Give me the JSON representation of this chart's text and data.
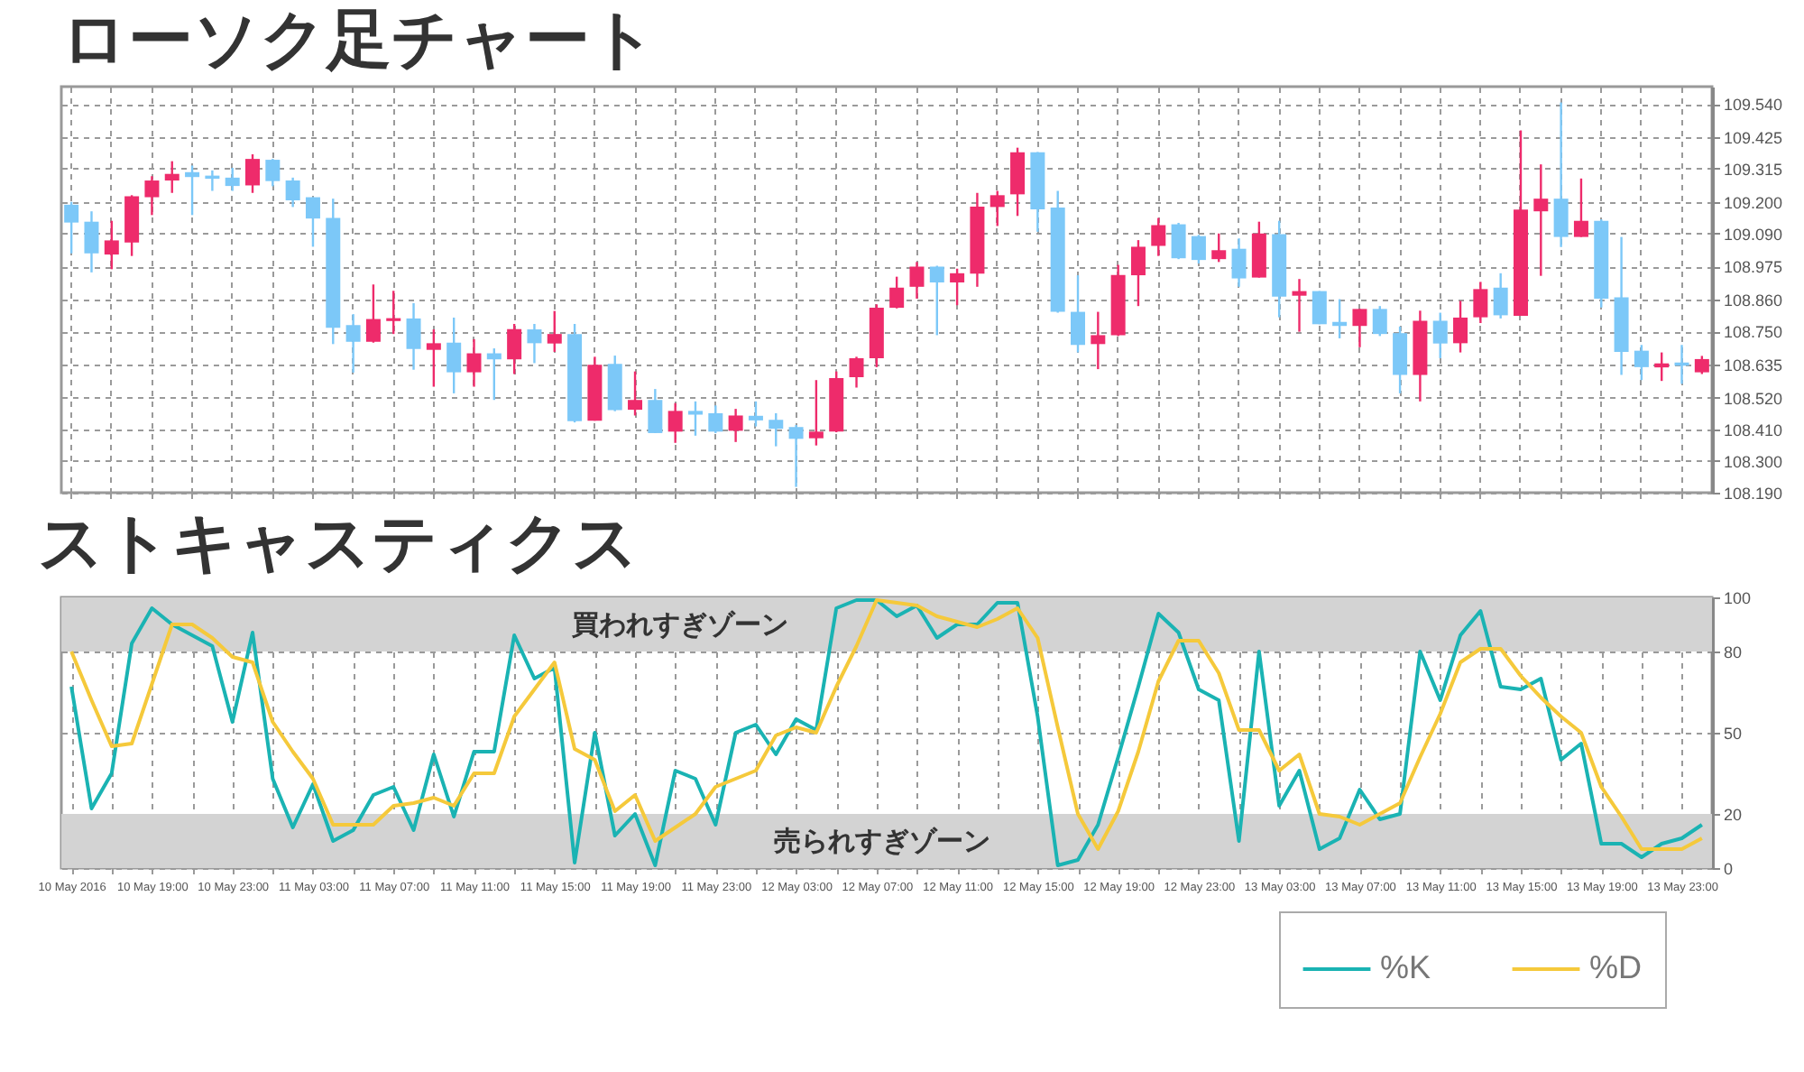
{
  "chart_data": [
    {
      "type": "candlestick",
      "title": "ローソク足チャート",
      "categories": [
        null,
        null,
        null,
        null,
        null,
        null,
        null,
        null,
        null,
        null,
        null,
        null,
        null,
        null,
        null,
        null,
        null,
        null,
        null,
        null,
        null,
        null,
        null,
        null,
        null,
        null,
        null,
        null,
        null,
        null,
        null,
        null,
        null,
        null,
        null,
        null,
        null,
        null,
        null,
        null,
        null,
        null,
        null,
        null,
        null,
        null,
        null,
        null,
        null,
        null,
        null,
        null,
        null,
        null,
        null,
        null,
        null,
        null,
        null,
        null,
        null,
        null,
        null,
        null,
        null,
        null,
        null,
        null,
        null,
        null,
        null,
        null,
        null,
        null,
        null,
        null,
        null,
        null,
        null,
        null,
        null,
        null
      ],
      "ohlc": [
        [
          109.19,
          109.2,
          109.021,
          109.128
        ],
        [
          109.131,
          109.167,
          108.955,
          109.021
        ],
        [
          109.017,
          109.134,
          108.966,
          109.066
        ],
        [
          109.059,
          109.223,
          109.012,
          109.219
        ],
        [
          109.216,
          109.289,
          109.154,
          109.274
        ],
        [
          109.274,
          109.341,
          109.231,
          109.297
        ],
        [
          109.303,
          109.326,
          109.154,
          109.286
        ],
        [
          109.291,
          109.309,
          109.238,
          109.28
        ],
        [
          109.284,
          109.318,
          109.238,
          109.255
        ],
        [
          109.257,
          109.365,
          109.231,
          109.349
        ],
        [
          109.346,
          109.349,
          109.254,
          109.272
        ],
        [
          109.274,
          109.284,
          109.182,
          109.205
        ],
        [
          109.216,
          109.216,
          109.044,
          109.142
        ],
        [
          109.144,
          109.211,
          108.706,
          108.763
        ],
        [
          108.772,
          108.81,
          108.607,
          108.714
        ],
        [
          108.714,
          108.913,
          108.711,
          108.793
        ],
        [
          108.786,
          108.891,
          108.741,
          108.796
        ],
        [
          108.795,
          108.848,
          108.617,
          108.689
        ],
        [
          108.686,
          108.757,
          108.558,
          108.709
        ],
        [
          108.711,
          108.798,
          108.535,
          108.608
        ],
        [
          108.608,
          108.723,
          108.558,
          108.674
        ],
        [
          108.674,
          108.691,
          108.512,
          108.653
        ],
        [
          108.653,
          108.776,
          108.602,
          108.758
        ],
        [
          108.757,
          108.776,
          108.64,
          108.709
        ],
        [
          108.708,
          108.821,
          108.679,
          108.741
        ],
        [
          108.741,
          108.776,
          108.434,
          108.438
        ],
        [
          108.44,
          108.662,
          108.44,
          108.634
        ],
        [
          108.637,
          108.666,
          108.473,
          108.477
        ],
        [
          108.478,
          108.611,
          108.458,
          108.512
        ],
        [
          108.512,
          108.55,
          108.397,
          108.397
        ],
        [
          108.402,
          108.501,
          108.363,
          108.474
        ],
        [
          108.474,
          108.507,
          108.388,
          108.461
        ],
        [
          108.466,
          108.493,
          108.397,
          108.402
        ],
        [
          108.405,
          108.481,
          108.366,
          108.458
        ],
        [
          108.457,
          108.507,
          108.42,
          108.441
        ],
        [
          108.443,
          108.466,
          108.351,
          108.412
        ],
        [
          108.418,
          108.425,
          108.21,
          108.377
        ],
        [
          108.379,
          108.581,
          108.354,
          108.402
        ],
        [
          108.402,
          108.611,
          108.4,
          108.588
        ],
        [
          108.591,
          108.662,
          108.555,
          108.657
        ],
        [
          108.657,
          108.844,
          108.626,
          108.832
        ],
        [
          108.832,
          108.94,
          108.83,
          108.902
        ],
        [
          108.905,
          108.991,
          108.864,
          108.975
        ],
        [
          108.975,
          108.978,
          108.737,
          108.92
        ],
        [
          108.92,
          108.968,
          108.841,
          108.952
        ],
        [
          108.951,
          109.231,
          108.905,
          109.183
        ],
        [
          109.182,
          109.238,
          109.116,
          109.223
        ],
        [
          109.226,
          109.388,
          109.151,
          109.372
        ],
        [
          109.372,
          109.373,
          109.096,
          109.174
        ],
        [
          109.18,
          109.238,
          108.815,
          108.818
        ],
        [
          108.818,
          108.945,
          108.677,
          108.703
        ],
        [
          108.706,
          108.818,
          108.619,
          108.737
        ],
        [
          108.737,
          108.981,
          108.734,
          108.946
        ],
        [
          108.945,
          109.067,
          108.838,
          109.044
        ],
        [
          109.047,
          109.144,
          109.012,
          109.119
        ],
        [
          109.122,
          109.127,
          109.001,
          109.004
        ],
        [
          109.081,
          109.085,
          108.986,
          108.998
        ],
        [
          109.001,
          109.09,
          108.991,
          109.032
        ],
        [
          109.037,
          109.073,
          108.905,
          108.934
        ],
        [
          108.937,
          109.131,
          108.937,
          109.09
        ],
        [
          109.088,
          109.134,
          108.799,
          108.871
        ],
        [
          108.874,
          108.932,
          108.749,
          108.89
        ],
        [
          108.89,
          108.89,
          108.775,
          108.775
        ],
        [
          108.783,
          108.862,
          108.726,
          108.769
        ],
        [
          108.769,
          108.828,
          108.695,
          108.828
        ],
        [
          108.828,
          108.838,
          108.734,
          108.741
        ],
        [
          108.744,
          108.767,
          108.535,
          108.599
        ],
        [
          108.599,
          108.822,
          108.507,
          108.787
        ],
        [
          108.787,
          108.815,
          108.657,
          108.708
        ],
        [
          108.709,
          108.856,
          108.677,
          108.798
        ],
        [
          108.799,
          108.922,
          108.779,
          108.897
        ],
        [
          108.902,
          108.952,
          108.795,
          108.806
        ],
        [
          108.804,
          109.448,
          108.804,
          109.173
        ],
        [
          109.167,
          109.33,
          108.943,
          109.211
        ],
        [
          109.211,
          109.545,
          109.043,
          109.078
        ],
        [
          109.078,
          109.281,
          109.078,
          109.134
        ],
        [
          109.134,
          109.139,
          108.833,
          108.864
        ],
        [
          108.868,
          109.078,
          108.599,
          108.679
        ],
        [
          108.683,
          108.703,
          108.581,
          108.626
        ],
        [
          108.625,
          108.677,
          108.578,
          108.639
        ],
        [
          108.642,
          108.703,
          108.568,
          108.631
        ],
        [
          108.608,
          108.665,
          108.602,
          108.654
        ]
      ],
      "colors": [
        "#7cc8f8",
        "#7cc8f8",
        "#ee2b6b",
        "#ee2b6b",
        "#ee2b6b",
        "#ee2b6b",
        "#7cc8f8",
        "#7cc8f8",
        "#7cc8f8",
        "#ee2b6b",
        "#7cc8f8",
        "#7cc8f8",
        "#7cc8f8",
        "#7cc8f8",
        "#7cc8f8",
        "#ee2b6b",
        "#ee2b6b",
        "#7cc8f8",
        "#ee2b6b",
        "#7cc8f8",
        "#ee2b6b",
        "#7cc8f8",
        "#ee2b6b",
        "#7cc8f8",
        "#ee2b6b",
        "#7cc8f8",
        "#ee2b6b",
        "#7cc8f8",
        "#ee2b6b",
        "#7cc8f8",
        "#ee2b6b",
        "#7cc8f8",
        "#7cc8f8",
        "#ee2b6b",
        "#7cc8f8",
        "#7cc8f8",
        "#7cc8f8",
        "#ee2b6b",
        "#ee2b6b",
        "#ee2b6b",
        "#ee2b6b",
        "#ee2b6b",
        "#ee2b6b",
        "#7cc8f8",
        "#ee2b6b",
        "#ee2b6b",
        "#ee2b6b",
        "#ee2b6b",
        "#7cc8f8",
        "#7cc8f8",
        "#7cc8f8",
        "#ee2b6b",
        "#ee2b6b",
        "#ee2b6b",
        "#ee2b6b",
        "#7cc8f8",
        "#7cc8f8",
        "#ee2b6b",
        "#7cc8f8",
        "#ee2b6b",
        "#7cc8f8",
        "#ee2b6b",
        "#7cc8f8",
        "#7cc8f8",
        "#ee2b6b",
        "#7cc8f8",
        "#7cc8f8",
        "#ee2b6b",
        "#7cc8f8",
        "#ee2b6b",
        "#ee2b6b",
        "#7cc8f8",
        "#ee2b6b",
        "#ee2b6b",
        "#7cc8f8",
        "#ee2b6b",
        "#7cc8f8",
        "#7cc8f8",
        "#7cc8f8",
        "#ee2b6b",
        "#7cc8f8",
        "#ee2b6b"
      ],
      "ylim": [
        108.19,
        109.6
      ],
      "yticks": [
        {
          "value": 108.19,
          "label": "108.190"
        },
        {
          "value": 108.3,
          "label": "108.300"
        },
        {
          "value": 108.41,
          "label": "108.410"
        },
        {
          "value": 108.52,
          "label": "108.520"
        },
        108.635,
        {
          "value": 108.75,
          "label": "108.750"
        },
        {
          "value": 108.86,
          "label": "108.860"
        },
        108.975,
        {
          "value": 109.09,
          "label": "109.090"
        },
        {
          "value": 109.2,
          "label": "109.200"
        },
        109.315,
        109.425,
        {
          "value": 109.54,
          "label": "109.540"
        }
      ],
      "grid": true,
      "tick_labels": "y"
    },
    {
      "type": "line",
      "title": "ストキャスティクス",
      "x": [
        "2016-05-10T15:00",
        "2016-05-10T16:00",
        "2016-05-10T17:00",
        "2016-05-10T18:00",
        "2016-05-10T19:00",
        "2016-05-10T20:00",
        "2016-05-10T21:00",
        "2016-05-10T22:00",
        "2016-05-10T23:00",
        "2016-05-11T00:00",
        "2016-05-11T01:00",
        "2016-05-11T02:00",
        "2016-05-11T03:00",
        "2016-05-11T04:00",
        "2016-05-11T05:00",
        "2016-05-11T06:00",
        "2016-05-11T07:00",
        "2016-05-11T08:00",
        "2016-05-11T09:00",
        "2016-05-11T10:00",
        "2016-05-11T11:00",
        "2016-05-11T12:00",
        "2016-05-11T13:00",
        "2016-05-11T14:00",
        "2016-05-11T15:00",
        "2016-05-11T16:00",
        "2016-05-11T17:00",
        "2016-05-11T18:00",
        "2016-05-11T19:00",
        "2016-05-11T20:00",
        "2016-05-11T21:00",
        "2016-05-11T22:00",
        "2016-05-11T23:00",
        "2016-05-12T00:00",
        "2016-05-12T01:00",
        "2016-05-12T02:00",
        "2016-05-12T03:00",
        "2016-05-12T04:00",
        "2016-05-12T05:00",
        "2016-05-12T06:00",
        "2016-05-12T07:00",
        "2016-05-12T08:00",
        "2016-05-12T09:00",
        "2016-05-12T10:00",
        "2016-05-12T11:00",
        "2016-05-12T12:00",
        "2016-05-12T13:00",
        "2016-05-12T14:00",
        "2016-05-12T15:00",
        "2016-05-12T16:00",
        "2016-05-12T17:00",
        "2016-05-12T18:00",
        "2016-05-12T19:00",
        "2016-05-12T20:00",
        "2016-05-12T21:00",
        "2016-05-12T22:00",
        "2016-05-12T23:00",
        "2016-05-13T00:00",
        "2016-05-13T01:00",
        "2016-05-13T02:00",
        "2016-05-13T03:00",
        "2016-05-13T04:00",
        "2016-05-13T05:00",
        "2016-05-13T06:00",
        "2016-05-13T07:00",
        "2016-05-13T08:00",
        "2016-05-13T09:00",
        "2016-05-13T10:00",
        "2016-05-13T11:00",
        "2016-05-13T12:00",
        "2016-05-13T13:00",
        "2016-05-13T14:00",
        "2016-05-13T15:00",
        "2016-05-13T16:00",
        "2016-05-13T17:00",
        "2016-05-13T18:00",
        "2016-05-13T19:00",
        "2016-05-13T20:00",
        "2016-05-13T21:00",
        "2016-05-13T22:00",
        "2016-05-13T23:00",
        "2016-05-14T00:00"
      ],
      "series": [
        {
          "name": "%K",
          "color": "#1ab3b3",
          "values": [
            67,
            22,
            35,
            83,
            96,
            90,
            86,
            82,
            54,
            87,
            33,
            15,
            31,
            10,
            14,
            27,
            30,
            14,
            42,
            19,
            43,
            43,
            86,
            70,
            74,
            2,
            50,
            12,
            20,
            1,
            36,
            33,
            16,
            50,
            53,
            42,
            55,
            51,
            96,
            99,
            99,
            93,
            97,
            85,
            90,
            90,
            98,
            98,
            56,
            1,
            3,
            16,
            41,
            67,
            94,
            87,
            66,
            62,
            10,
            80,
            23,
            36,
            7,
            11,
            29,
            18,
            20,
            80,
            62,
            86,
            95,
            67,
            66,
            70,
            40,
            46,
            9,
            9,
            4,
            9,
            11,
            16
          ]
        },
        {
          "name": "%D",
          "color": "#f5c93b",
          "values": [
            80,
            62,
            45,
            46,
            68,
            90,
            90,
            85,
            78,
            76,
            54,
            43,
            33,
            16,
            16,
            16,
            23,
            24,
            26,
            23,
            35,
            35,
            56,
            66,
            76,
            44,
            40,
            21,
            27,
            10,
            15,
            20,
            30,
            33,
            36,
            49,
            52,
            50,
            67,
            82,
            99,
            98,
            97,
            93,
            91,
            89,
            92,
            96,
            85,
            52,
            20,
            7,
            21,
            43,
            69,
            84,
            84,
            72,
            51,
            51,
            36,
            42,
            20,
            19,
            16,
            20,
            24,
            41,
            57,
            76,
            81,
            81,
            71,
            63,
            56,
            50,
            30,
            19,
            7,
            7,
            7,
            11
          ]
        }
      ],
      "xlim": [
        "2016-05-10T14:30",
        "2016-05-14T00:30"
      ],
      "xticks": [
        {
          "value": "2016-05-10T15:00",
          "label": "10 May 2016"
        },
        {
          "value": "2016-05-10T17:00",
          "label": null
        },
        {
          "value": "2016-05-10T19:00",
          "label": "10 May 19:00"
        },
        {
          "value": "2016-05-10T21:00",
          "label": null
        },
        {
          "value": "2016-05-10T23:00",
          "label": "10 May 23:00"
        },
        {
          "value": "2016-05-11T01:00",
          "label": null
        },
        {
          "value": "2016-05-11T03:00",
          "label": "11 May 03:00"
        },
        {
          "value": "2016-05-11T05:00",
          "label": null
        },
        {
          "value": "2016-05-11T07:00",
          "label": "11 May 07:00"
        },
        {
          "value": "2016-05-11T09:00",
          "label": null
        },
        {
          "value": "2016-05-11T11:00",
          "label": "11 May 11:00"
        },
        {
          "value": "2016-05-11T13:00",
          "label": null
        },
        {
          "value": "2016-05-11T15:00",
          "label": "11 May 15:00"
        },
        {
          "value": "2016-05-11T17:00",
          "label": null
        },
        {
          "value": "2016-05-11T19:00",
          "label": "11 May 19:00"
        },
        {
          "value": "2016-05-11T21:00",
          "label": null
        },
        {
          "value": "2016-05-11T23:00",
          "label": "11 May 23:00"
        },
        {
          "value": "2016-05-12T01:00",
          "label": null
        },
        {
          "value": "2016-05-12T03:00",
          "label": "12 May 03:00"
        },
        {
          "value": "2016-05-12T05:00",
          "label": null
        },
        {
          "value": "2016-05-12T07:00",
          "label": "12 May 07:00"
        },
        {
          "value": "2016-05-12T09:00",
          "label": null
        },
        {
          "value": "2016-05-12T11:00",
          "label": "12 May 11:00"
        },
        {
          "value": "2016-05-12T13:00",
          "label": null
        },
        {
          "value": "2016-05-12T15:00",
          "label": "12 May 15:00"
        },
        {
          "value": "2016-05-12T17:00",
          "label": null
        },
        {
          "value": "2016-05-12T19:00",
          "label": "12 May 19:00"
        },
        {
          "value": "2016-05-12T21:00",
          "label": null
        },
        {
          "value": "2016-05-12T23:00",
          "label": "12 May 23:00"
        },
        {
          "value": "2016-05-13T01:00",
          "label": null
        },
        {
          "value": "2016-05-13T03:00",
          "label": "13 May 03:00"
        },
        {
          "value": "2016-05-13T05:00",
          "label": null
        },
        {
          "value": "2016-05-13T07:00",
          "label": "13 May 07:00"
        },
        {
          "value": "2016-05-13T09:00",
          "label": null
        },
        {
          "value": "2016-05-13T11:00",
          "label": "13 May 11:00"
        },
        {
          "value": "2016-05-13T13:00",
          "label": null
        },
        {
          "value": "2016-05-13T15:00",
          "label": "13 May 15:00"
        },
        {
          "value": "2016-05-13T17:00",
          "label": null
        },
        {
          "value": "2016-05-13T19:00",
          "label": "13 May 19:00"
        },
        {
          "value": "2016-05-13T21:00",
          "label": null
        },
        {
          "value": "2016-05-13T23:00",
          "label": "13 May 23:00"
        }
      ],
      "ylim": [
        0,
        100
      ],
      "yticks": [
        0,
        20,
        50,
        80,
        100
      ],
      "bands": [
        {
          "axis": "y",
          "from": 80,
          "to": 100,
          "label": "買われすぎゾーン",
          "color": "#d3d3d3"
        },
        {
          "axis": "y",
          "from": 0,
          "to": 20,
          "label": "売られすぎゾーン",
          "color": "#d3d3d3"
        }
      ],
      "grid": true,
      "legend": "bottom right"
    }
  ]
}
